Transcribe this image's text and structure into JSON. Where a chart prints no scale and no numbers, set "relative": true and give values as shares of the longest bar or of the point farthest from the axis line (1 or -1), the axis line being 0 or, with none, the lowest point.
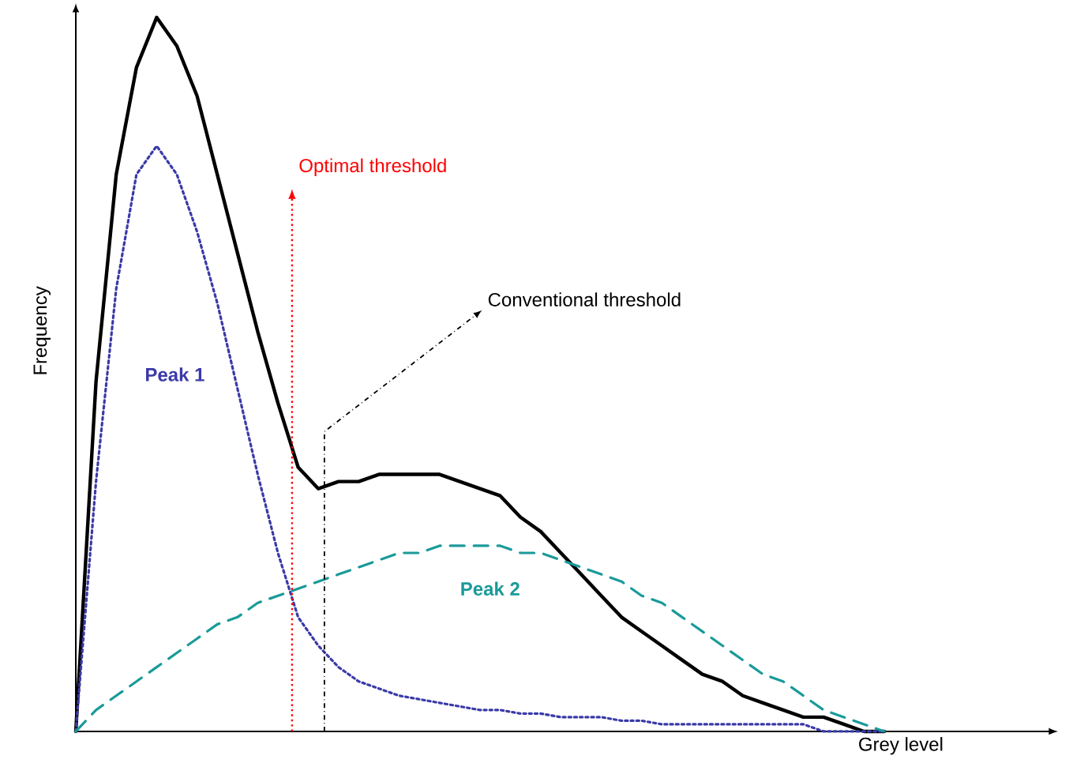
{
  "chart_data": {
    "type": "line",
    "relative": true,
    "xlabel": "Grey level",
    "ylabel": "Frequency",
    "marker": "none",
    "categories": [
      null,
      null,
      null,
      null,
      null,
      null,
      null,
      null,
      null,
      null,
      null,
      null,
      null,
      null,
      null,
      null,
      null,
      null,
      null,
      null,
      null,
      null,
      null,
      null,
      null,
      null,
      null,
      null,
      null,
      null,
      null,
      null,
      null,
      null,
      null,
      null,
      null,
      null,
      null,
      null,
      null
    ],
    "series": [
      {
        "color": "#000000",
        "line_style": "solid",
        "values": [
          0,
          0.49,
          0.78,
          0.93,
          1.0,
          0.96,
          0.89,
          0.78,
          0.67,
          0.56,
          0.46,
          0.37,
          0.34,
          0.35,
          0.35,
          0.36,
          0.36,
          0.36,
          0.36,
          0.35,
          0.34,
          0.33,
          0.3,
          0.28,
          0.25,
          0.22,
          0.19,
          0.16,
          0.14,
          0.12,
          0.1,
          0.08,
          0.07,
          0.05,
          0.04,
          0.03,
          0.02,
          0.02,
          0.01,
          0.0,
          0
        ]
      },
      {
        "name": "Peak 1",
        "color": "#3a3aa8",
        "line_style": "dotted",
        "values": [
          0,
          0.35,
          0.62,
          0.78,
          0.82,
          0.78,
          0.7,
          0.6,
          0.48,
          0.36,
          0.25,
          0.16,
          0.12,
          0.09,
          0.07,
          0.06,
          0.05,
          0.045,
          0.04,
          0.035,
          0.03,
          0.03,
          0.025,
          0.025,
          0.02,
          0.02,
          0.02,
          0.015,
          0.015,
          0.01,
          0.01,
          0.01,
          0.01,
          0.01,
          0.01,
          0.01,
          0.01,
          0,
          0,
          0,
          0
        ]
      },
      {
        "name": "Peak 2",
        "color": "#1a9a9a",
        "line_style": "dashed",
        "values": [
          0,
          0.03,
          0.05,
          0.07,
          0.09,
          0.11,
          0.13,
          0.15,
          0.16,
          0.18,
          0.19,
          0.2,
          0.21,
          0.22,
          0.23,
          0.24,
          0.25,
          0.25,
          0.26,
          0.26,
          0.26,
          0.26,
          0.25,
          0.25,
          0.24,
          0.23,
          0.22,
          0.21,
          0.19,
          0.18,
          0.16,
          0.14,
          0.12,
          0.1,
          0.08,
          0.07,
          0.05,
          0.03,
          0.02,
          0.01,
          0
        ]
      }
    ],
    "annotations": [
      "Optimal threshold",
      "Conventional threshold"
    ]
  }
}
